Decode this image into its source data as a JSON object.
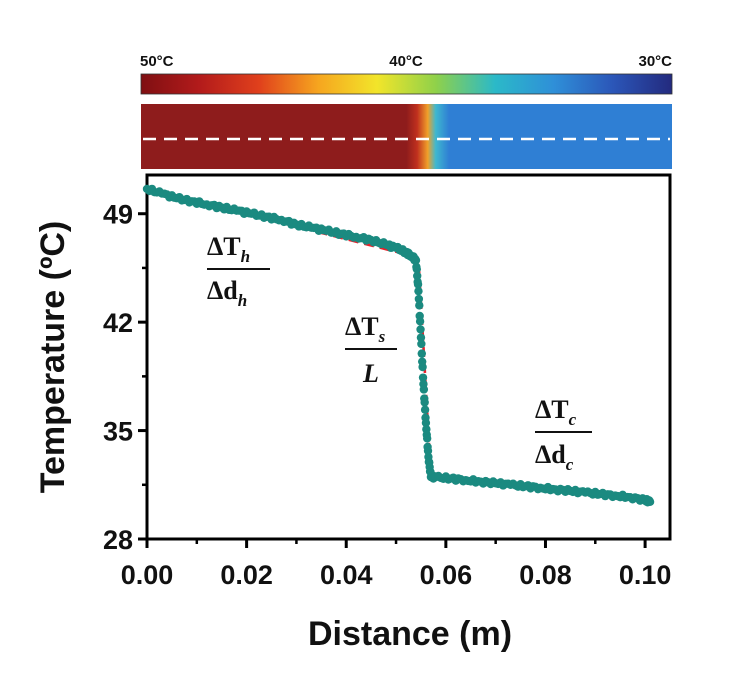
{
  "colorbar": {
    "labels": [
      "50°C",
      "40°C",
      "30°C"
    ],
    "colors": [
      "#7f0f12",
      "#b31b1b",
      "#e0401c",
      "#f6a51f",
      "#f2e52a",
      "#8fd14a",
      "#2bb9c8",
      "#2f8fd8",
      "#2b56b8",
      "#232a7e"
    ]
  },
  "thermal_image": {
    "hot_color": "#8e1c1c",
    "cold_color": "#2f7fd4",
    "dash_color": "#ffffff"
  },
  "annotations": {
    "hot": {
      "num": "ΔT",
      "num_sub": "h",
      "den": "Δd",
      "den_sub": "h"
    },
    "step": {
      "num": "ΔT",
      "num_sub": "s",
      "den": "L",
      "den_sub": ""
    },
    "cold": {
      "num": "ΔT",
      "num_sub": "c",
      "den": "Δd",
      "den_sub": "c"
    }
  },
  "chart_data": {
    "type": "scatter",
    "title": "",
    "xlabel": "Distance (m)",
    "ylabel": "Temperature (ºC)",
    "xlim": [
      0,
      0.105
    ],
    "ylim": [
      28,
      51.5
    ],
    "xticks": [
      "0.00",
      "0.02",
      "0.04",
      "0.06",
      "0.08",
      "0.10"
    ],
    "xtick_values": [
      0,
      0.02,
      0.04,
      0.06,
      0.08,
      0.1
    ],
    "yticks": [
      "28",
      "35",
      "42",
      "49"
    ],
    "ytick_values": [
      28,
      35,
      42,
      49
    ],
    "marker_color": "#1b8a80",
    "fit_color": "#e8202a",
    "series": [
      {
        "type": "scatter",
        "x": [
          0.0,
          0.003,
          0.006,
          0.009,
          0.012,
          0.015,
          0.018,
          0.021,
          0.024,
          0.027,
          0.03,
          0.033,
          0.036,
          0.039,
          0.042,
          0.045,
          0.048,
          0.05,
          0.052,
          0.053,
          0.054,
          0.0545,
          0.055,
          0.0555,
          0.056,
          0.0565,
          0.057,
          0.058,
          0.061,
          0.064,
          0.067,
          0.07,
          0.073,
          0.076,
          0.079,
          0.082,
          0.085,
          0.088,
          0.091,
          0.094,
          0.097,
          0.1,
          0.101
        ],
        "y": [
          50.6,
          50.3,
          50.0,
          49.8,
          49.6,
          49.4,
          49.2,
          49.0,
          48.8,
          48.6,
          48.3,
          48.1,
          47.9,
          47.7,
          47.5,
          47.3,
          47.0,
          46.8,
          46.5,
          46.3,
          46.0,
          44.0,
          41.0,
          38.0,
          35.5,
          33.3,
          32.0,
          32.0,
          31.9,
          31.8,
          31.7,
          31.6,
          31.5,
          31.4,
          31.3,
          31.2,
          31.1,
          31.0,
          30.9,
          30.8,
          30.7,
          30.5,
          30.4
        ]
      },
      {
        "type": "line",
        "style": "dashed",
        "x": [
          0.0,
          0.053,
          0.0545,
          0.057,
          0.101
        ],
        "y": [
          50.6,
          46.3,
          46.0,
          32.0,
          30.4
        ]
      }
    ]
  }
}
